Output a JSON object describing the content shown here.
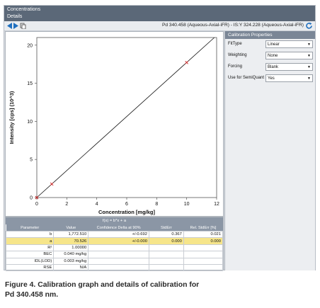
{
  "menu": {
    "item1": "Concentrations",
    "item2": "Details"
  },
  "toolbar": {
    "title": "Pd 340.458 (Aqueous-Axial-iFR) - IS:Y 324.228 (Aqueous-Axial-iFR)"
  },
  "chart_data": {
    "type": "scatter",
    "xlabel": "Concentration [mg/kg]",
    "ylabel": "Intensity [cps] (10^3)",
    "xlim": [
      0,
      12
    ],
    "ylim": [
      0,
      21
    ],
    "xticks": [
      "0",
      "2",
      "4",
      "6",
      "8",
      "10",
      "12"
    ],
    "yticks": [
      "0",
      "5",
      "10",
      "15",
      "20"
    ],
    "points": [
      {
        "x": 0,
        "y": 0
      },
      {
        "x": 1,
        "y": 1.77
      },
      {
        "x": 10,
        "y": 17.72
      }
    ],
    "fit_line": {
      "slope": 1.7725,
      "intercept": 0
    },
    "grid": false,
    "colors": {
      "line": "#111111",
      "points": "#cc2222"
    }
  },
  "properties": {
    "header": "Calibration Properties",
    "rows": [
      {
        "label": "FitType",
        "value": "Linear"
      },
      {
        "label": "Weighting",
        "value": "None"
      },
      {
        "label": "Forcing",
        "value": "Blank"
      },
      {
        "label": "Use for SemiQuant",
        "value": "Yes"
      }
    ]
  },
  "results": {
    "formula": "f(x) = b*x + a",
    "columns": [
      "Parameter",
      "Value",
      "Confidence Delta at 90%",
      "StdErr",
      "Rel. StdErr [%]"
    ],
    "rows": [
      [
        "b",
        "1,772.510",
        "+/-0.692",
        "0.367",
        "0.021"
      ],
      [
        "a",
        "70.526",
        "+/-0.000",
        "0.000",
        "0.000"
      ],
      [
        "R²",
        "1.00000",
        "",
        "",
        ""
      ],
      [
        "BEC",
        "0.040 mg/kg",
        "",
        "",
        ""
      ],
      [
        "IDL(LOD)",
        "0.003 mg/kg",
        "",
        "",
        ""
      ],
      [
        "RSE",
        "N/A",
        "",
        "",
        ""
      ]
    ],
    "selected_row": 1
  },
  "caption": {
    "line1": "Figure 4. Calibration graph and details of calibration for",
    "line2": "Pd 340.458 nm."
  }
}
